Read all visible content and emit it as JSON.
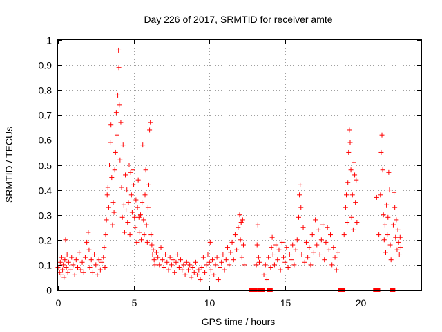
{
  "chart_data": {
    "type": "scatter",
    "title": "Day 226 of 2017, SRMTID for receiver amte",
    "xlabel": "GPS time / hours",
    "ylabel": "SRMTID / TECUs",
    "xlim": [
      0,
      24
    ],
    "ylim": [
      0,
      1
    ],
    "xticks": [
      0,
      5,
      10,
      15,
      20
    ],
    "xtick_labels": [
      "0",
      "5",
      "10",
      "15",
      "20"
    ],
    "yticks": [
      0,
      0.1,
      0.2,
      0.3,
      0.4,
      0.5,
      0.6,
      0.7,
      0.8,
      0.9,
      1
    ],
    "ytick_labels": [
      "0",
      "0.1",
      "0.2",
      "0.3",
      "0.4",
      "0.5",
      "0.6",
      "0.7",
      "0.8",
      "0.9",
      "1"
    ],
    "grid": true,
    "marker": "+",
    "color": "#ff0000",
    "series": [
      {
        "name": "SRMTID",
        "points": [
          [
            0.0,
            0.09
          ],
          [
            0.1,
            0.07
          ],
          [
            0.15,
            0.11
          ],
          [
            0.2,
            0.06
          ],
          [
            0.25,
            0.13
          ],
          [
            0.3,
            0.08
          ],
          [
            0.35,
            0.1
          ],
          [
            0.4,
            0.05
          ],
          [
            0.45,
            0.12
          ],
          [
            0.5,
            0.2
          ],
          [
            0.55,
            0.09
          ],
          [
            0.6,
            0.14
          ],
          [
            0.65,
            0.07
          ],
          [
            0.7,
            0.11
          ],
          [
            0.8,
            0.08
          ],
          [
            0.9,
            0.13
          ],
          [
            1.0,
            0.1
          ],
          [
            1.1,
            0.06
          ],
          [
            1.2,
            0.12
          ],
          [
            1.3,
            0.09
          ],
          [
            1.4,
            0.15
          ],
          [
            1.5,
            0.08
          ],
          [
            1.6,
            0.11
          ],
          [
            1.7,
            0.07
          ],
          [
            1.8,
            0.13
          ],
          [
            1.9,
            0.19
          ],
          [
            2.0,
            0.23
          ],
          [
            2.05,
            0.16
          ],
          [
            2.1,
            0.09
          ],
          [
            2.2,
            0.12
          ],
          [
            2.3,
            0.07
          ],
          [
            2.4,
            0.14
          ],
          [
            2.5,
            0.1
          ],
          [
            2.6,
            0.06
          ],
          [
            2.7,
            0.12
          ],
          [
            2.8,
            0.08
          ],
          [
            2.9,
            0.11
          ],
          [
            3.0,
            0.13
          ],
          [
            3.05,
            0.17
          ],
          [
            3.1,
            0.09
          ],
          [
            3.15,
            0.22
          ],
          [
            3.2,
            0.28
          ],
          [
            3.25,
            0.38
          ],
          [
            3.3,
            0.41
          ],
          [
            3.35,
            0.33
          ],
          [
            3.4,
            0.5
          ],
          [
            3.45,
            0.59
          ],
          [
            3.5,
            0.66
          ],
          [
            3.55,
            0.45
          ],
          [
            3.6,
            0.26
          ],
          [
            3.65,
            0.35
          ],
          [
            3.7,
            0.31
          ],
          [
            3.75,
            0.48
          ],
          [
            3.8,
            0.55
          ],
          [
            3.85,
            0.71
          ],
          [
            3.9,
            0.62
          ],
          [
            3.95,
            0.78
          ],
          [
            4.0,
            0.96
          ],
          [
            4.02,
            0.89
          ],
          [
            4.05,
            0.74
          ],
          [
            4.1,
            0.52
          ],
          [
            4.15,
            0.67
          ],
          [
            4.2,
            0.41
          ],
          [
            4.25,
            0.29
          ],
          [
            4.3,
            0.58
          ],
          [
            4.35,
            0.34
          ],
          [
            4.4,
            0.23
          ],
          [
            4.45,
            0.46
          ],
          [
            4.5,
            0.32
          ],
          [
            4.55,
            0.4
          ],
          [
            4.6,
            0.27
          ],
          [
            4.65,
            0.35
          ],
          [
            4.7,
            0.5
          ],
          [
            4.75,
            0.22
          ],
          [
            4.8,
            0.47
          ],
          [
            4.85,
            0.38
          ],
          [
            4.9,
            0.31
          ],
          [
            4.95,
            0.48
          ],
          [
            5.0,
            0.42
          ],
          [
            5.05,
            0.29
          ],
          [
            5.1,
            0.25
          ],
          [
            5.15,
            0.36
          ],
          [
            5.2,
            0.19
          ],
          [
            5.25,
            0.33
          ],
          [
            5.3,
            0.44
          ],
          [
            5.35,
            0.29
          ],
          [
            5.4,
            0.23
          ],
          [
            5.45,
            0.3
          ],
          [
            5.5,
            0.2
          ],
          [
            5.55,
            0.35
          ],
          [
            5.6,
            0.58
          ],
          [
            5.65,
            0.28
          ],
          [
            5.7,
            0.22
          ],
          [
            5.75,
            0.38
          ],
          [
            5.8,
            0.48
          ],
          [
            5.85,
            0.26
          ],
          [
            5.9,
            0.19
          ],
          [
            5.95,
            0.33
          ],
          [
            6.0,
            0.42
          ],
          [
            6.05,
            0.64
          ],
          [
            6.1,
            0.67
          ],
          [
            6.15,
            0.22
          ],
          [
            6.2,
            0.18
          ],
          [
            6.25,
            0.14
          ],
          [
            6.3,
            0.16
          ],
          [
            6.35,
            0.12
          ],
          [
            6.4,
            0.1
          ],
          [
            6.5,
            0.15
          ],
          [
            6.6,
            0.13
          ],
          [
            6.7,
            0.1
          ],
          [
            6.8,
            0.17
          ],
          [
            6.9,
            0.12
          ],
          [
            7.0,
            0.09
          ],
          [
            7.1,
            0.14
          ],
          [
            7.2,
            0.11
          ],
          [
            7.3,
            0.08
          ],
          [
            7.4,
            0.13
          ],
          [
            7.5,
            0.1
          ],
          [
            7.6,
            0.12
          ],
          [
            7.7,
            0.07
          ],
          [
            7.8,
            0.11
          ],
          [
            7.9,
            0.14
          ],
          [
            8.0,
            0.09
          ],
          [
            8.1,
            0.12
          ],
          [
            8.2,
            0.08
          ],
          [
            8.3,
            0.1
          ],
          [
            8.4,
            0.06
          ],
          [
            8.5,
            0.11
          ],
          [
            8.6,
            0.08
          ],
          [
            8.7,
            0.1
          ],
          [
            8.8,
            0.05
          ],
          [
            8.9,
            0.09
          ],
          [
            9.0,
            0.07
          ],
          [
            9.1,
            0.11
          ],
          [
            9.2,
            0.06
          ],
          [
            9.3,
            0.08
          ],
          [
            9.4,
            0.04
          ],
          [
            9.5,
            0.09
          ],
          [
            9.6,
            0.13
          ],
          [
            9.7,
            0.07
          ],
          [
            9.8,
            0.1
          ],
          [
            9.9,
            0.14
          ],
          [
            10.0,
            0.11
          ],
          [
            10.05,
            0.19
          ],
          [
            10.1,
            0.08
          ],
          [
            10.2,
            0.12
          ],
          [
            10.3,
            0.06
          ],
          [
            10.4,
            0.1
          ],
          [
            10.5,
            0.13
          ],
          [
            10.6,
            0.04
          ],
          [
            10.7,
            0.09
          ],
          [
            10.8,
            0.11
          ],
          [
            10.9,
            0.14
          ],
          [
            11.0,
            0.08
          ],
          [
            11.1,
            0.12
          ],
          [
            11.2,
            0.17
          ],
          [
            11.3,
            0.1
          ],
          [
            11.4,
            0.15
          ],
          [
            11.5,
            0.19
          ],
          [
            11.6,
            0.12
          ],
          [
            11.7,
            0.22
          ],
          [
            11.8,
            0.16
          ],
          [
            11.9,
            0.25
          ],
          [
            12.0,
            0.3
          ],
          [
            12.05,
            0.2
          ],
          [
            12.1,
            0.27
          ],
          [
            12.15,
            0.13
          ],
          [
            12.2,
            0.28
          ],
          [
            12.25,
            0.18
          ],
          [
            12.3,
            0.1
          ],
          [
            12.8,
            0.0
          ],
          [
            13.0,
            0.0
          ],
          [
            13.1,
            0.1
          ],
          [
            13.15,
            0.18
          ],
          [
            13.2,
            0.26
          ],
          [
            13.25,
            0.13
          ],
          [
            13.3,
            0.11
          ],
          [
            13.4,
            0.0
          ],
          [
            13.5,
            0.0
          ],
          [
            13.6,
            0.06
          ],
          [
            13.7,
            0.1
          ],
          [
            13.8,
            0.04
          ],
          [
            13.9,
            0.13
          ],
          [
            14.0,
            0.0
          ],
          [
            14.05,
            0.09
          ],
          [
            14.1,
            0.17
          ],
          [
            14.15,
            0.21
          ],
          [
            14.2,
            0.14
          ],
          [
            14.3,
            0.1
          ],
          [
            14.4,
            0.18
          ],
          [
            14.5,
            0.12
          ],
          [
            14.6,
            0.16
          ],
          [
            14.7,
            0.08
          ],
          [
            14.8,
            0.19
          ],
          [
            14.9,
            0.13
          ],
          [
            15.0,
            0.11
          ],
          [
            15.1,
            0.17
          ],
          [
            15.2,
            0.09
          ],
          [
            15.3,
            0.14
          ],
          [
            15.4,
            0.12
          ],
          [
            15.5,
            0.18
          ],
          [
            15.6,
            0.1
          ],
          [
            15.7,
            0.16
          ],
          [
            15.8,
            0.2
          ],
          [
            15.9,
            0.29
          ],
          [
            15.95,
            0.38
          ],
          [
            16.0,
            0.42
          ],
          [
            16.05,
            0.33
          ],
          [
            16.1,
            0.14
          ],
          [
            16.2,
            0.25
          ],
          [
            16.3,
            0.11
          ],
          [
            16.4,
            0.19
          ],
          [
            16.5,
            0.13
          ],
          [
            16.6,
            0.17
          ],
          [
            16.7,
            0.1
          ],
          [
            16.8,
            0.22
          ],
          [
            16.9,
            0.15
          ],
          [
            17.0,
            0.28
          ],
          [
            17.1,
            0.18
          ],
          [
            17.2,
            0.24
          ],
          [
            17.3,
            0.14
          ],
          [
            17.4,
            0.2
          ],
          [
            17.5,
            0.26
          ],
          [
            17.6,
            0.12
          ],
          [
            17.7,
            0.19
          ],
          [
            17.8,
            0.25
          ],
          [
            17.9,
            0.16
          ],
          [
            18.0,
            0.22
          ],
          [
            18.1,
            0.1
          ],
          [
            18.2,
            0.17
          ],
          [
            18.3,
            0.13
          ],
          [
            18.4,
            0.08
          ],
          [
            18.5,
            0.15
          ],
          [
            18.7,
            0.0
          ],
          [
            18.8,
            0.0
          ],
          [
            18.9,
            0.22
          ],
          [
            19.0,
            0.33
          ],
          [
            19.05,
            0.38
          ],
          [
            19.1,
            0.27
          ],
          [
            19.15,
            0.43
          ],
          [
            19.2,
            0.55
          ],
          [
            19.25,
            0.64
          ],
          [
            19.3,
            0.59
          ],
          [
            19.35,
            0.48
          ],
          [
            19.4,
            0.29
          ],
          [
            19.45,
            0.38
          ],
          [
            19.5,
            0.24
          ],
          [
            19.55,
            0.51
          ],
          [
            19.6,
            0.46
          ],
          [
            19.65,
            0.35
          ],
          [
            19.7,
            0.44
          ],
          [
            19.75,
            0.27
          ],
          [
            21.0,
            0.0
          ],
          [
            21.05,
            0.37
          ],
          [
            21.1,
            0.0
          ],
          [
            21.2,
            0.22
          ],
          [
            21.3,
            0.38
          ],
          [
            21.35,
            0.55
          ],
          [
            21.4,
            0.62
          ],
          [
            21.45,
            0.48
          ],
          [
            21.5,
            0.3
          ],
          [
            21.55,
            0.2
          ],
          [
            21.6,
            0.26
          ],
          [
            21.65,
            0.15
          ],
          [
            21.7,
            0.34
          ],
          [
            21.75,
            0.22
          ],
          [
            21.8,
            0.29
          ],
          [
            21.85,
            0.47
          ],
          [
            21.9,
            0.4
          ],
          [
            21.95,
            0.18
          ],
          [
            22.0,
            0.12
          ],
          [
            22.1,
            0.0
          ],
          [
            22.15,
            0.26
          ],
          [
            22.2,
            0.39
          ],
          [
            22.25,
            0.33
          ],
          [
            22.3,
            0.21
          ],
          [
            22.35,
            0.28
          ],
          [
            22.4,
            0.16
          ],
          [
            22.45,
            0.24
          ],
          [
            22.5,
            0.19
          ],
          [
            22.55,
            0.14
          ],
          [
            22.6,
            0.21
          ],
          [
            22.65,
            0.17
          ]
        ]
      }
    ]
  }
}
